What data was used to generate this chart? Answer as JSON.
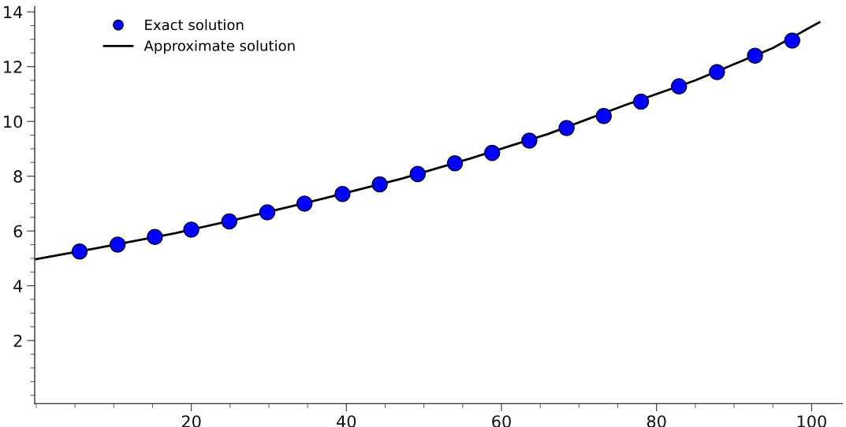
{
  "chart_data": {
    "type": "scatter",
    "xlim": [
      -0.2,
      104
    ],
    "ylim": [
      -0.3,
      14.2
    ],
    "xticks": [
      20,
      40,
      60,
      80,
      100
    ],
    "yticks": [
      2,
      4,
      6,
      8,
      10,
      12,
      14
    ],
    "grid": false,
    "legend": "top left",
    "series": [
      {
        "name": "Exact solution",
        "marker": "circle",
        "color": "#0000ff",
        "x": [
          5.6,
          10.5,
          15.3,
          20,
          24.9,
          29.8,
          34.6,
          39.5,
          44.3,
          49.2,
          54,
          58.8,
          63.6,
          68.4,
          73.2,
          78,
          82.9,
          87.8,
          92.7,
          97.5
        ],
        "values": [
          5.25,
          5.5,
          5.78,
          6.05,
          6.35,
          6.68,
          7.0,
          7.35,
          7.7,
          8.08,
          8.47,
          8.85,
          9.3,
          9.76,
          10.2,
          10.72,
          11.28,
          11.8,
          12.4,
          12.95
        ]
      },
      {
        "name": "Approximate solution",
        "type": "line",
        "marker": "none",
        "line_style": "solid",
        "color": "#000000",
        "x": [
          0,
          8,
          18,
          27,
          37,
          47,
          56,
          66,
          76,
          85,
          95,
          101
        ],
        "values": [
          4.97,
          5.38,
          5.92,
          6.5,
          7.18,
          7.9,
          8.65,
          9.54,
          10.6,
          11.5,
          12.68,
          13.62
        ]
      }
    ]
  }
}
